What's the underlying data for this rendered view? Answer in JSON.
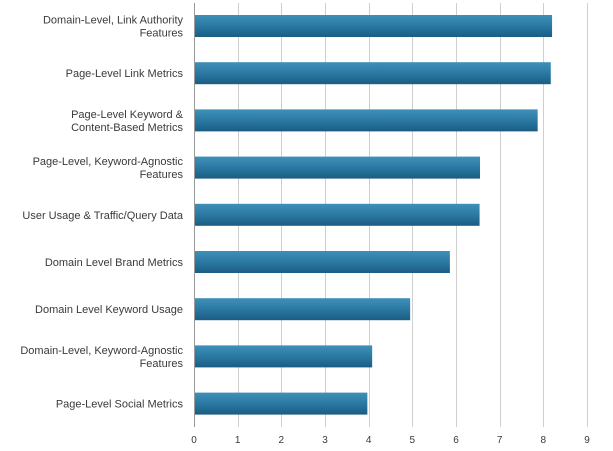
{
  "chart_data": {
    "type": "bar",
    "orientation": "horizontal",
    "title": "",
    "xlabel": "",
    "ylabel": "",
    "categories": [
      "Domain-Level, Link Authority Features",
      "Page-Level Link Metrics",
      "Page-Level Keyword & Content-Based Metrics",
      "Page-Level, Keyword-Agnostic Features",
      "User Usage & Traffic/Query Data",
      "Domain Level Brand Metrics",
      "Domain Level Keyword Usage",
      "Domain-Level, Keyword-Agnostic Features",
      "Page-Level Social Metrics"
    ],
    "values": [
      8.2,
      8.17,
      7.87,
      6.55,
      6.54,
      5.86,
      4.95,
      4.08,
      3.97
    ],
    "xlim": [
      0,
      9
    ],
    "ticks": [
      "0",
      "1",
      "2",
      "3",
      "4",
      "5",
      "6",
      "7",
      "8",
      "9"
    ],
    "grid": true,
    "legend": "none",
    "colors": {
      "bar_top": "#3f90b8",
      "bar_mid": "#2a79a3",
      "bar_bottom": "#1b5c82",
      "grid": "#cfcfcf",
      "axis": "#9a9a9a",
      "text": "#3a3a3a"
    }
  }
}
